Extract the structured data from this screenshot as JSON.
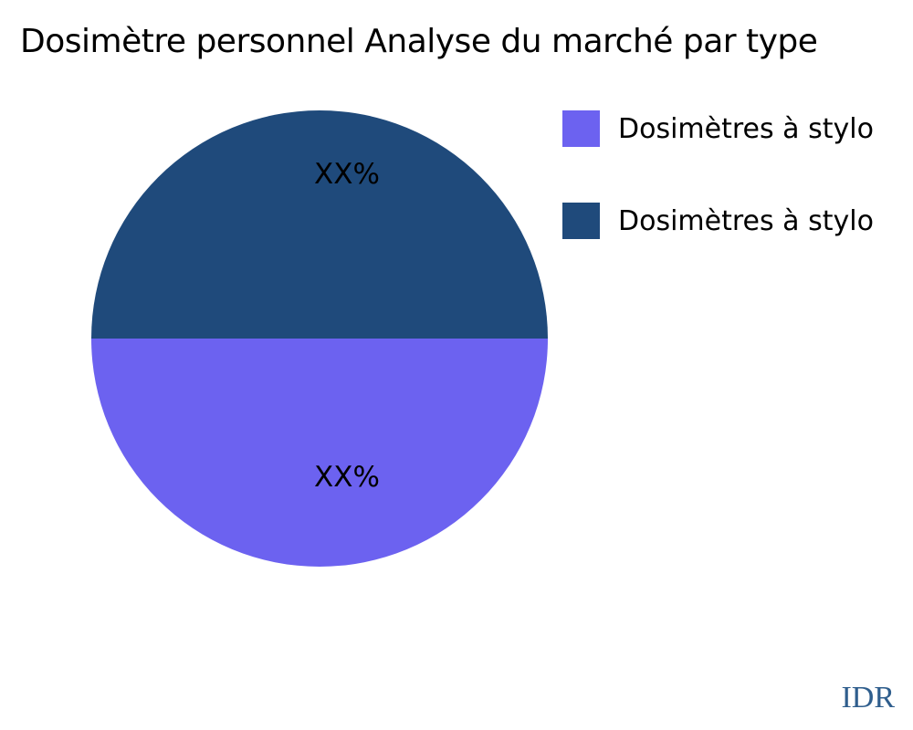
{
  "chart_data": {
    "type": "pie",
    "title": "Dosimètre personnel Analyse du marché par type",
    "slices": [
      {
        "label": "Dosimètres à stylo",
        "value": 50,
        "value_label": "XX%",
        "color": "#6C62F0",
        "half": "bottom"
      },
      {
        "label": "Dosimètres à stylo",
        "value": 50,
        "value_label": "XX%",
        "color": "#1F4A7B",
        "half": "top"
      }
    ],
    "legend_position": "upper-right",
    "background": "#FFFFFF",
    "label_color": "#000000"
  },
  "watermark": {
    "text": "IDR",
    "color": "#2F5E8D"
  }
}
